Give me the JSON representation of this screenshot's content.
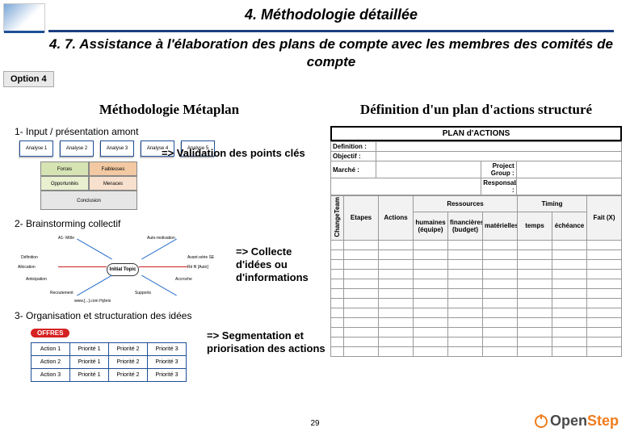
{
  "page": {
    "title": "4. Méthodologie détaillée",
    "subtitle": "4. 7. Assistance à l'élaboration des plans de compte avec les membres des comités de compte",
    "option_label": "Option 4",
    "page_number": "29"
  },
  "logo": {
    "name": "OpenStep",
    "text_open": "Open",
    "text_step": "Step",
    "open_color": "#555555",
    "step_color": "#f07c1d"
  },
  "left": {
    "heading": "Méthodologie Métaplan",
    "step1": {
      "title": "1- Input / présentation amont",
      "analyses": [
        "Analyse 1",
        "Analyse 2",
        "Analyse 3",
        "Analyse 4",
        "Analyse 5"
      ],
      "swot": {
        "forces": "Forces",
        "faiblesses": "Faiblesses",
        "opportunites": "Opportunités",
        "menaces": "Menaces",
        "conclusion": "Conclusion"
      },
      "callout": "=> Validation des points clés"
    },
    "step2": {
      "title": "2- Brainstorming collectif",
      "mindmap_center": "Initial Topic",
      "branches": [
        "A1- Môle",
        "A2- ...",
        "Anticipation",
        "Conf.",
        "Définition",
        "Allocation",
        "Recrutement",
        "Auto-motivation",
        "Avant-série SE",
        "Ré fil [Auto]",
        "Accroche",
        "Supports",
        "www.[...].com Hybris"
      ],
      "callout": "=> Collecte d'idées ou d'informations"
    },
    "step3": {
      "title": "3- Organisation et structuration des idées",
      "offer_label": "OFFRES",
      "rows": [
        [
          "Action 1",
          "Priorité 1",
          "Priorité 2",
          "Priorité 3"
        ],
        [
          "Action 2",
          "Priorité 1",
          "Priorité 2",
          "Priorité 3"
        ],
        [
          "Action 3",
          "Priorité 1",
          "Priorité 2",
          "Priorité 3"
        ]
      ],
      "callout": "=> Segmentation et priorisation des actions"
    }
  },
  "right": {
    "heading": "Définition d'un plan d'actions structuré",
    "table_title": "PLAN d'ACTIONS",
    "labels": {
      "definition": "Definition :",
      "objectif": "Objectif :",
      "marche": "Marché :",
      "project_group": "Project Group :",
      "responsable": "Responsable :",
      "change": "ChangeTeam"
    },
    "header_groups": {
      "ressources": "Ressources",
      "timing": "Timing"
    },
    "columns": [
      "Etapes",
      "Actions",
      "humaines (équipe)",
      "financières (budget)",
      "matérielles",
      "temps",
      "échéance",
      "Fait (X)"
    ],
    "row_count": 12,
    "colors": {
      "border": "#888888",
      "header_bg": "#f2f2f2"
    }
  }
}
